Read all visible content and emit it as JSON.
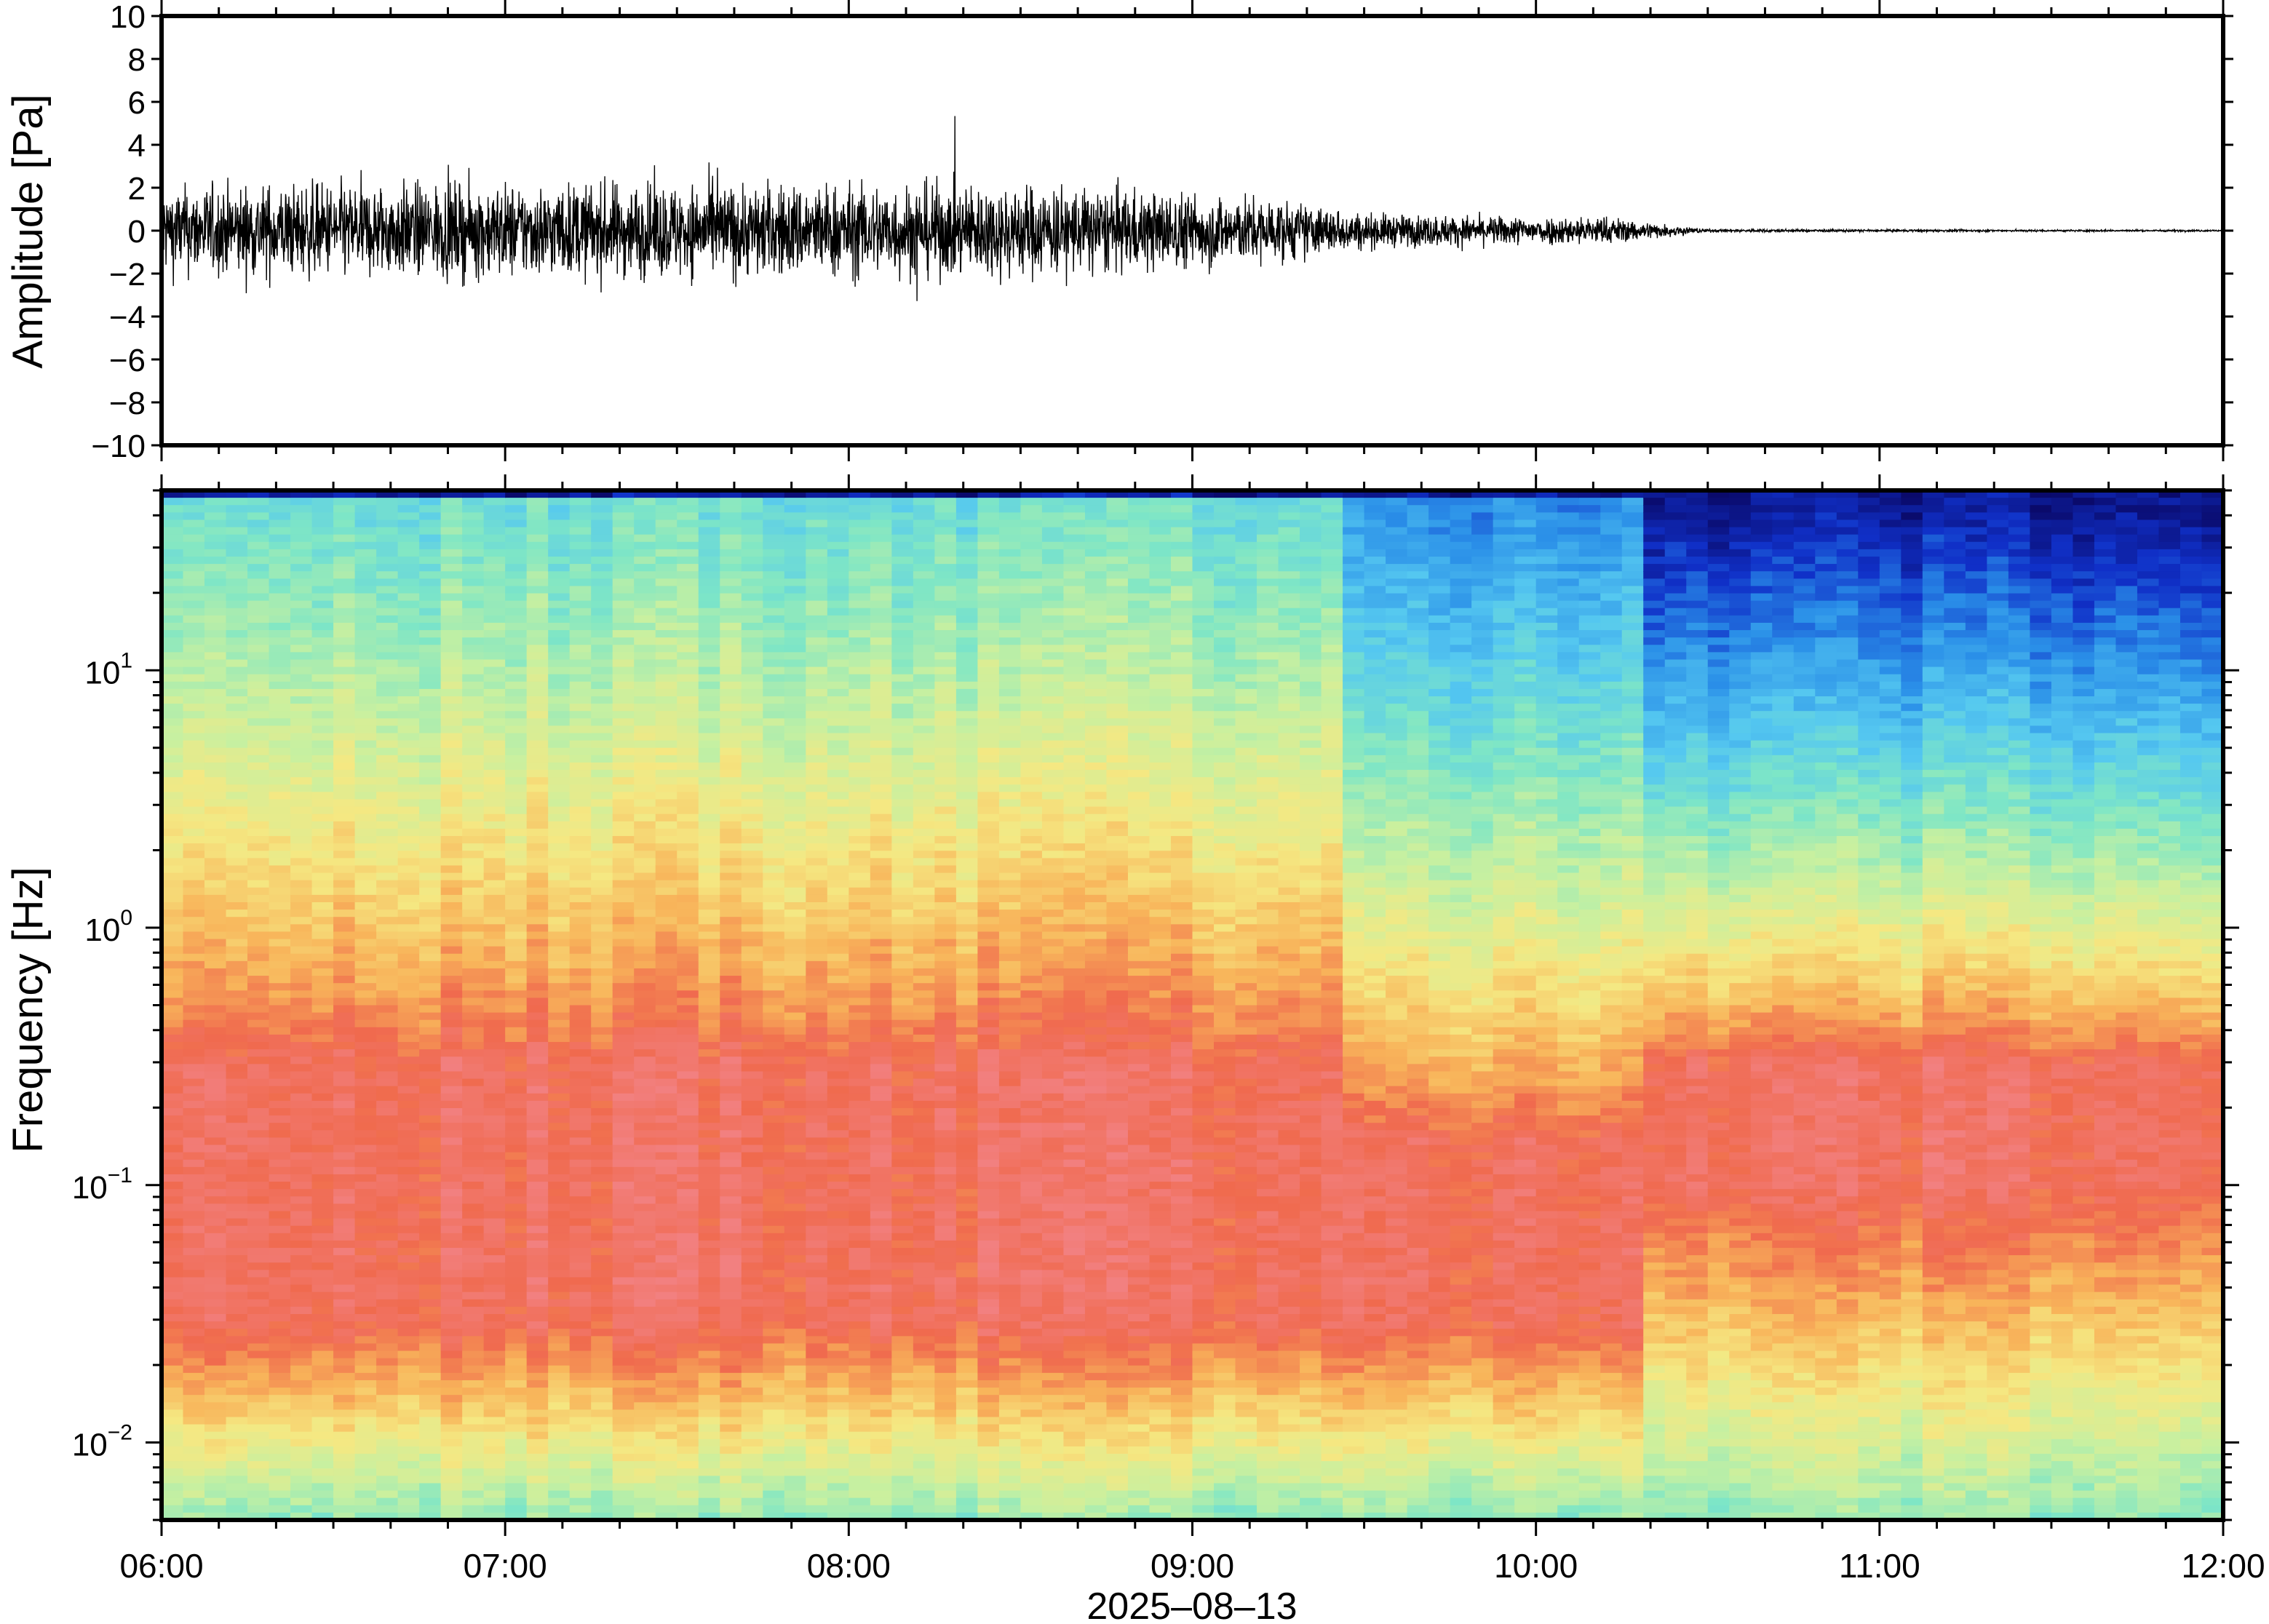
{
  "chart_data": [
    {
      "type": "line",
      "ylabel": "Amplitude [Pa]",
      "ylim": [
        -10,
        10
      ],
      "yticks": [
        10,
        8,
        6,
        4,
        2,
        0,
        -2,
        -4,
        -6,
        -8,
        -10
      ],
      "ytick_labels": [
        "10",
        "8",
        "6",
        "4",
        "2",
        "0",
        "−2",
        "−4",
        "−6",
        "−8",
        "−10"
      ],
      "x_start": "06:00",
      "x_end": "12:00",
      "envelope_hours": [
        0,
        0.5,
        1,
        1.5,
        2,
        2.5,
        3,
        3.25,
        3.5,
        3.9,
        4.2,
        4.5,
        5,
        5.5,
        6
      ],
      "envelope_amplitude": [
        1.4,
        1.5,
        1.5,
        1.5,
        1.5,
        1.5,
        1.2,
        1.0,
        0.55,
        0.45,
        0.45,
        0.05,
        0.04,
        0.03,
        0.03
      ],
      "series": [
        {
          "values_description": ""
        }
      ],
      "grid": false
    },
    {
      "type": "heatmap",
      "ylabel": "Frequency [Hz]",
      "yscale": "log",
      "ylim": [
        0.005,
        50
      ],
      "yticks": [
        10,
        1,
        0.1,
        0.01
      ],
      "ytick_labels": [
        {
          "base": "10",
          "exp": "1"
        },
        {
          "base": "10",
          "exp": "0"
        },
        {
          "base": "10",
          "exp": "−1"
        },
        {
          "base": "10",
          "exp": "−2"
        }
      ],
      "xlabel": "2025–08–13",
      "xticks": [
        "06:00",
        "07:00",
        "08:00",
        "09:00",
        "10:00",
        "11:00",
        "12:00"
      ],
      "xlim_hours": [
        6,
        12
      ],
      "colormap": [
        "#0a0a6b",
        "#1030c8",
        "#2a8fe8",
        "#55c8f0",
        "#7ee6c6",
        "#c8f0a0",
        "#f5e882",
        "#f8b45a",
        "#f06a4e",
        "#f28080"
      ],
      "regions": [
        {
          "from_hour": 6,
          "to_hour": 9.45,
          "peak_band_hz": [
            0.03,
            0.3
          ],
          "high_freq_level": "cyan"
        },
        {
          "from_hour": 9.45,
          "to_hour": 10.3,
          "peak_band_hz": [
            0.03,
            0.15
          ],
          "high_freq_level": "blue"
        },
        {
          "from_hour": 10.3,
          "to_hour": 12,
          "peak_band_hz": [
            0.1,
            0.3
          ],
          "high_freq_level": "dark-blue"
        }
      ],
      "grid": false
    }
  ],
  "colors": {
    "frame": "#000000",
    "trace": "#000000"
  }
}
